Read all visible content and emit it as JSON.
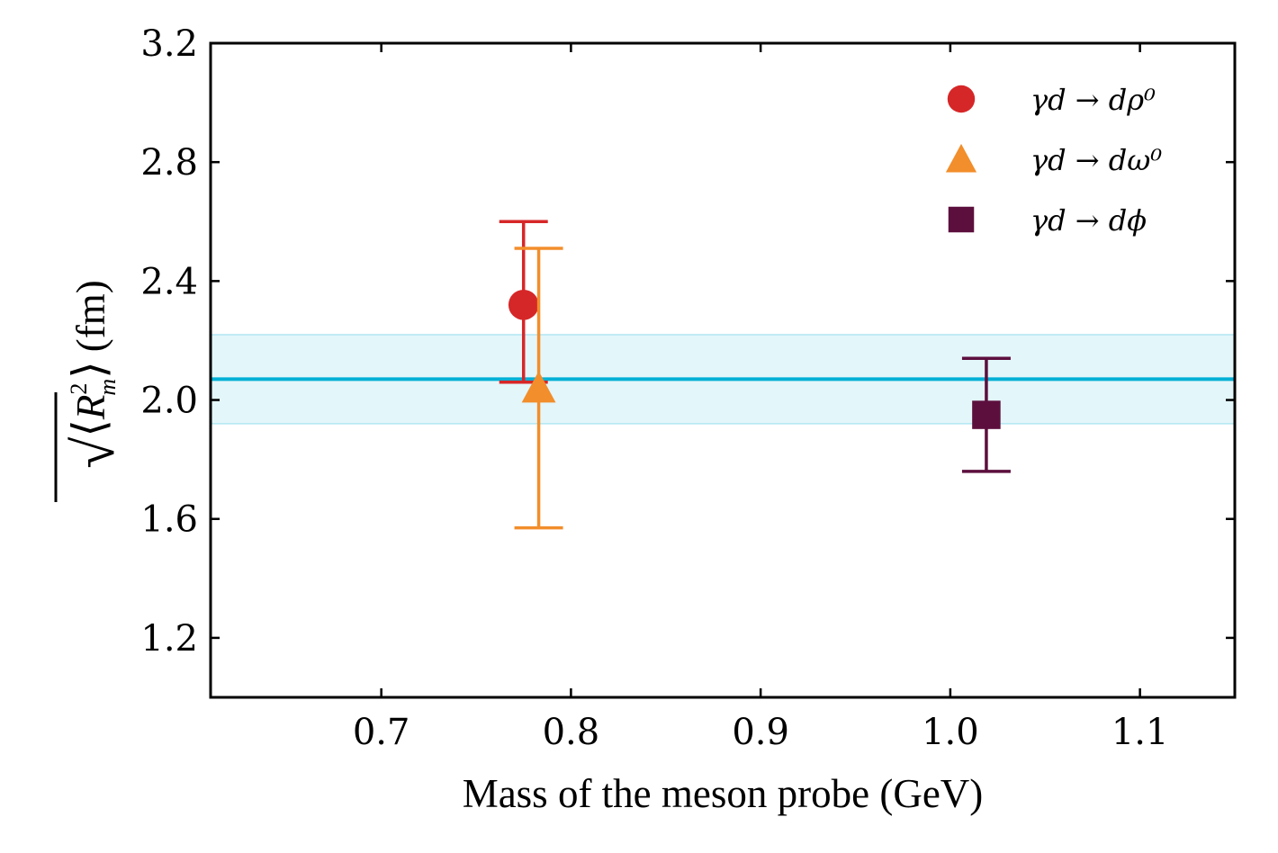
{
  "chart_data": {
    "type": "scatter",
    "xlabel": "Mass of the meson probe (GeV)",
    "ylabel": "(fm)",
    "ylabel_math": {
      "prefix": "√",
      "bracket_open": "⟨",
      "var": "R",
      "sup": "2",
      "sub": "m",
      "bracket_close": "⟩"
    },
    "xlim": [
      0.61,
      1.15
    ],
    "ylim": [
      1.0,
      3.2
    ],
    "xticks": [
      0.7,
      0.8,
      0.9,
      1.0,
      1.1
    ],
    "xtick_labels": [
      "0.7",
      "0.8",
      "0.9",
      "1.0",
      "1.1"
    ],
    "yticks": [
      1.2,
      1.6,
      2.0,
      2.4,
      2.8,
      3.2
    ],
    "ytick_labels": [
      "1.2",
      "1.6",
      "2.0",
      "2.4",
      "2.8",
      "3.2"
    ],
    "grid": false,
    "legend_position": "top-right",
    "band": {
      "center": 2.07,
      "lower": 1.92,
      "upper": 2.22,
      "color": "#00b0d6"
    },
    "series": [
      {
        "name": "γd → dρ⁰",
        "marker": "circle",
        "color": "#d62728",
        "x": 0.775,
        "y": 2.32,
        "yerr_low": 2.06,
        "yerr_high": 2.6
      },
      {
        "name": "γd → dω⁰",
        "marker": "triangle",
        "color": "#f28e2b",
        "x": 0.783,
        "y": 2.04,
        "yerr_low": 1.57,
        "yerr_high": 2.51
      },
      {
        "name": "γd → dϕ",
        "marker": "square",
        "color": "#5c0f3d",
        "x": 1.019,
        "y": 1.95,
        "yerr_low": 1.76,
        "yerr_high": 2.14
      }
    ]
  }
}
